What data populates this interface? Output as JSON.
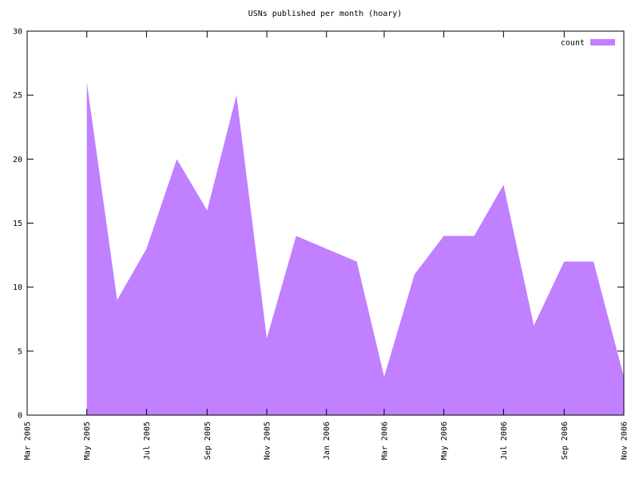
{
  "chart_data": {
    "type": "area",
    "title": "USNs published per month (hoary)",
    "x": [
      "2005-05",
      "2005-06",
      "2005-07",
      "2005-08",
      "2005-09",
      "2005-10",
      "2005-11",
      "2005-12",
      "2006-01",
      "2006-02",
      "2006-03",
      "2006-04",
      "2006-05",
      "2006-06",
      "2006-07",
      "2006-08",
      "2006-09",
      "2006-10",
      "2006-11"
    ],
    "series": [
      {
        "name": "count",
        "color": "#c080ff",
        "values": [
          26,
          9,
          13,
          20,
          16,
          25,
          6,
          14,
          13,
          12,
          3,
          11,
          14,
          14,
          18,
          7,
          12,
          12,
          3
        ]
      }
    ],
    "xlim": [
      "2005-03",
      "2006-11"
    ],
    "xticks": [
      {
        "value": "2005-03",
        "label": "Mar 2005"
      },
      {
        "value": "2005-05",
        "label": "May 2005"
      },
      {
        "value": "2005-07",
        "label": "Jul 2005"
      },
      {
        "value": "2005-09",
        "label": "Sep 2005"
      },
      {
        "value": "2005-11",
        "label": "Nov 2005"
      },
      {
        "value": "2006-01",
        "label": "Jan 2006"
      },
      {
        "value": "2006-03",
        "label": "Mar 2006"
      },
      {
        "value": "2006-05",
        "label": "May 2006"
      },
      {
        "value": "2006-07",
        "label": "Jul 2006"
      },
      {
        "value": "2006-09",
        "label": "Sep 2006"
      },
      {
        "value": "2006-11",
        "label": "Nov 2006"
      }
    ],
    "ylim": [
      0,
      30
    ],
    "yticks": [
      0,
      5,
      10,
      15,
      20,
      25,
      30
    ],
    "legend": "top-right"
  }
}
